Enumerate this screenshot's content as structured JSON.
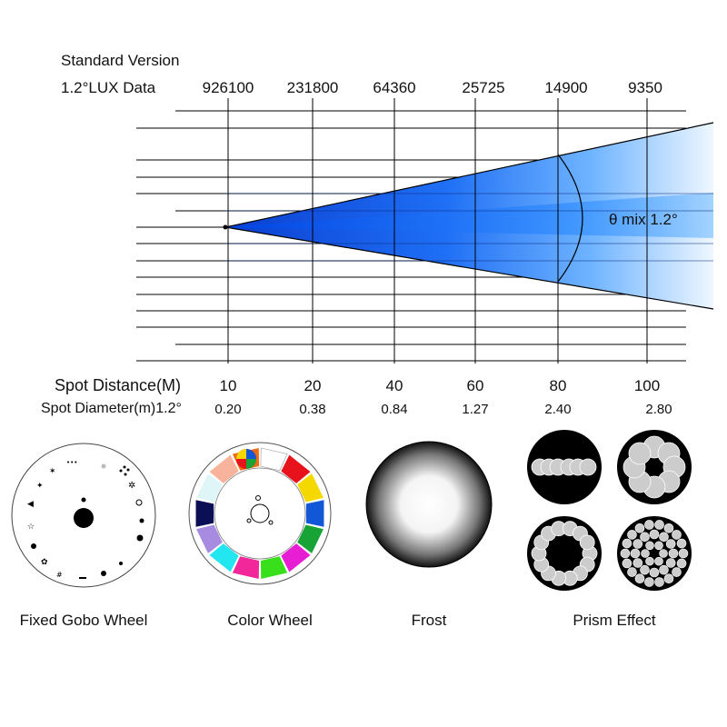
{
  "header": {
    "title": "Standard Version",
    "lux_label": "1.2°LUX Data"
  },
  "lux_values": [
    "926100",
    "231800",
    "64360",
    "25725",
    "14900",
    "9350"
  ],
  "beam": {
    "angle_label": "θ mix 1.2°",
    "colors": {
      "deep": "#0a4fe0",
      "mid": "#2f8bff",
      "light": "#dff0ff"
    }
  },
  "distance": {
    "label": "Spot Distance(M)",
    "values": [
      "10",
      "20",
      "40",
      "60",
      "80",
      "100"
    ]
  },
  "diameter": {
    "label": "Spot Diameter(m)1.2°",
    "values": [
      "0.20",
      "0.38",
      "0.84",
      "1.27",
      "2.40",
      "2.80"
    ]
  },
  "wheels": {
    "gobo_label": "Fixed Gobo Wheel",
    "color_label": "Color Wheel",
    "frost_label": "Frost",
    "prism_label": "Prism Effect",
    "color_slots": [
      "#ffffff",
      "#e8121c",
      "#f5d800",
      "#1157d8",
      "#18a337",
      "#e81ed5",
      "#38e01c",
      "#f2289a",
      "#22e6f0",
      "#a68be0",
      "#0b0f55",
      "#def6f8",
      "#f7b39c",
      "#f06a12"
    ]
  }
}
